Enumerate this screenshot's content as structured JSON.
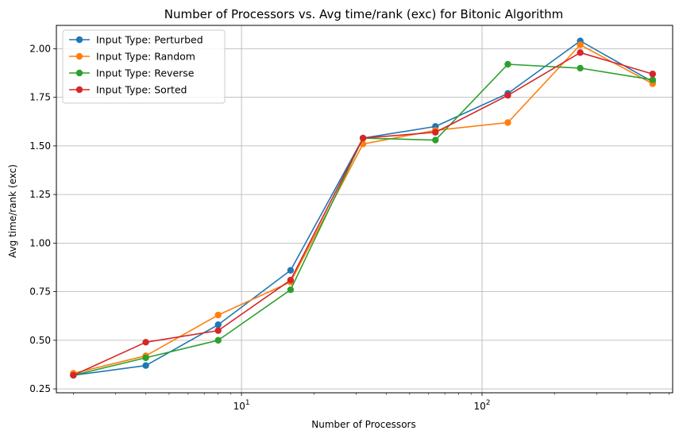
{
  "chart_data": {
    "type": "line",
    "title": "Number of Processors vs. Avg time/rank (exc) for Bitonic Algorithm",
    "xlabel": "Number of Processors",
    "ylabel": "Avg time/rank (exc)",
    "x_scale": "log",
    "xlim": [
      1.7,
      620
    ],
    "ylim": [
      0.23,
      2.12
    ],
    "x_major_ticks": [
      10,
      100
    ],
    "x_tick_labels": [
      {
        "base": "10",
        "exp": "1"
      },
      {
        "base": "10",
        "exp": "2"
      }
    ],
    "y_ticks": [
      0.25,
      0.5,
      0.75,
      1.0,
      1.25,
      1.5,
      1.75,
      2.0
    ],
    "y_tick_labels": [
      "0.25",
      "0.50",
      "0.75",
      "1.00",
      "1.25",
      "1.50",
      "1.75",
      "2.00"
    ],
    "grid": true,
    "legend_position": "top-left",
    "x": [
      2,
      4,
      8,
      16,
      32,
      64,
      128,
      256,
      512
    ],
    "series": [
      {
        "name": "Input Type: Perturbed",
        "color": "#1f77b4",
        "values": [
          0.32,
          0.37,
          0.58,
          0.86,
          1.54,
          1.6,
          1.77,
          2.04,
          1.83
        ]
      },
      {
        "name": "Input Type: Random",
        "color": "#ff7f0e",
        "values": [
          0.33,
          0.42,
          0.63,
          0.8,
          1.51,
          1.58,
          1.62,
          2.02,
          1.82
        ]
      },
      {
        "name": "Input Type: Reverse",
        "color": "#2ca02c",
        "values": [
          0.32,
          0.41,
          0.5,
          0.76,
          1.54,
          1.53,
          1.92,
          1.9,
          1.84
        ]
      },
      {
        "name": "Input Type: Sorted",
        "color": "#d62728",
        "values": [
          0.32,
          0.49,
          0.55,
          0.81,
          1.54,
          1.57,
          1.76,
          1.98,
          1.87
        ]
      }
    ]
  }
}
